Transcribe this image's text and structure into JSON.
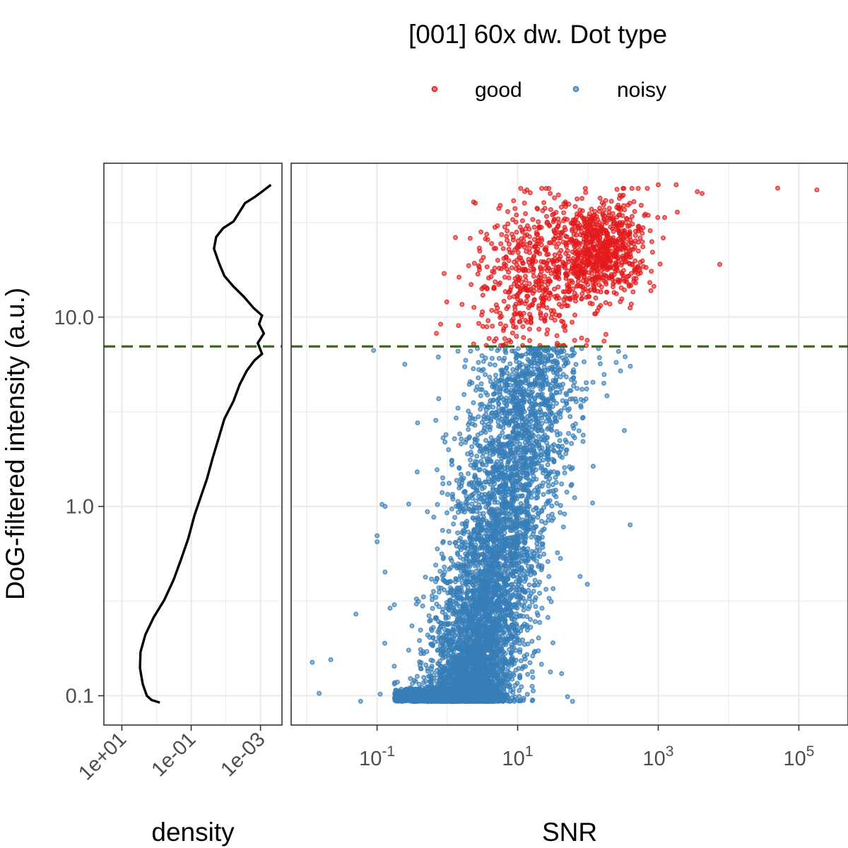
{
  "chart_data": [
    {
      "type": "scatter",
      "title": "[001] 60x dw. Dot type",
      "xlabel": "SNR",
      "ylabel": "DoG-filtered intensity (a.u.)",
      "x_scale": "log10",
      "y_scale": "log10",
      "xlim": [
        0.006,
        500000
      ],
      "ylim": [
        0.07,
        65
      ],
      "x_ticks": [
        {
          "value": 0.1,
          "base": "10",
          "exp": "-1"
        },
        {
          "value": 10,
          "base": "10",
          "exp": "1"
        },
        {
          "value": 1000,
          "base": "10",
          "exp": "3"
        },
        {
          "value": 100000,
          "base": "10",
          "exp": "5"
        }
      ],
      "y_ticks": [
        {
          "value": 0.1,
          "label": "0.1"
        },
        {
          "value": 1.0,
          "label": "1.0"
        },
        {
          "value": 10.0,
          "label": "10.0"
        }
      ],
      "threshold_y": 7.0,
      "grid": true,
      "legend_position": "top",
      "legend_title": "[001] 60x dw. Dot type",
      "series": [
        {
          "name": "good",
          "color": "#e41a1c",
          "rule": "intensity above threshold",
          "snr_range": [
            0.3,
            200000
          ],
          "intensity_range": [
            7.0,
            50
          ],
          "outliers": [
            {
              "x": 50000,
              "y": 48
            },
            {
              "x": 180000,
              "y": 47
            },
            {
              "x": 7500,
              "y": 19
            },
            {
              "x": 4200,
              "y": 45
            },
            {
              "x": 3600,
              "y": 46
            },
            {
              "x": 1800,
              "y": 50
            },
            {
              "x": 1000,
              "y": 50
            },
            {
              "x": 0.7,
              "y": 8.2
            },
            {
              "x": 2.5,
              "y": 40
            },
            {
              "x": 0.9,
              "y": 17
            }
          ]
        },
        {
          "name": "noisy",
          "color": "#377eb8",
          "rule": "intensity below threshold",
          "snr_range": [
            0.01,
            450
          ],
          "intensity_range": [
            0.093,
            7.0
          ],
          "outliers": [
            {
              "x": 0.012,
              "y": 0.15
            },
            {
              "x": 0.015,
              "y": 0.103
            },
            {
              "x": 0.022,
              "y": 0.155
            },
            {
              "x": 0.05,
              "y": 0.27
            },
            {
              "x": 0.1,
              "y": 0.7
            },
            {
              "x": 0.1,
              "y": 0.65
            },
            {
              "x": 0.13,
              "y": 1.0
            },
            {
              "x": 0.13,
              "y": 0.45
            },
            {
              "x": 400,
              "y": 5.5
            },
            {
              "x": 70,
              "y": 4.2
            },
            {
              "x": 60,
              "y": 6.8
            }
          ]
        }
      ]
    },
    {
      "type": "line",
      "xlabel": "density",
      "x_scale": "log10-reversed",
      "xlim": [
        33,
        0.00024
      ],
      "ylim": [
        0.07,
        65
      ],
      "x_ticks": [
        {
          "value": 10,
          "label": "1e+01"
        },
        {
          "value": 0.1,
          "label": "1e-01"
        },
        {
          "value": 0.001,
          "label": "1e-03"
        }
      ],
      "grid": true,
      "series": [
        {
          "name": "",
          "color": "#000000",
          "points": [
            [
              0.8,
              0.092
            ],
            [
              1.4,
              0.095
            ],
            [
              1.9,
              0.1
            ],
            [
              2.5,
              0.115
            ],
            [
              3.0,
              0.14
            ],
            [
              2.9,
              0.17
            ],
            [
              2.1,
              0.21
            ],
            [
              1.2,
              0.26
            ],
            [
              0.6,
              0.32
            ],
            [
              0.32,
              0.41
            ],
            [
              0.2,
              0.52
            ],
            [
              0.12,
              0.68
            ],
            [
              0.08,
              0.9
            ],
            [
              0.055,
              1.1
            ],
            [
              0.035,
              1.4
            ],
            [
              0.024,
              1.8
            ],
            [
              0.016,
              2.3
            ],
            [
              0.011,
              2.9
            ],
            [
              0.006,
              3.6
            ],
            [
              0.004,
              4.4
            ],
            [
              0.0025,
              5.2
            ],
            [
              0.0015,
              5.9
            ],
            [
              0.0009,
              6.4
            ],
            [
              0.0012,
              7.3
            ],
            [
              0.0008,
              8.2
            ],
            [
              0.0011,
              9.2
            ],
            [
              0.0009,
              10.2
            ],
            [
              0.0016,
              11.2
            ],
            [
              0.003,
              12.8
            ],
            [
              0.006,
              14.5
            ],
            [
              0.011,
              16.5
            ],
            [
              0.016,
              19.5
            ],
            [
              0.022,
              23.0
            ],
            [
              0.019,
              26.5
            ],
            [
              0.012,
              29.5
            ],
            [
              0.006,
              32.0
            ],
            [
              0.004,
              36.0
            ],
            [
              0.0028,
              40.0
            ],
            [
              0.0015,
              43.0
            ],
            [
              0.0009,
              46.0
            ],
            [
              0.0005,
              50.0
            ]
          ]
        }
      ]
    }
  ]
}
